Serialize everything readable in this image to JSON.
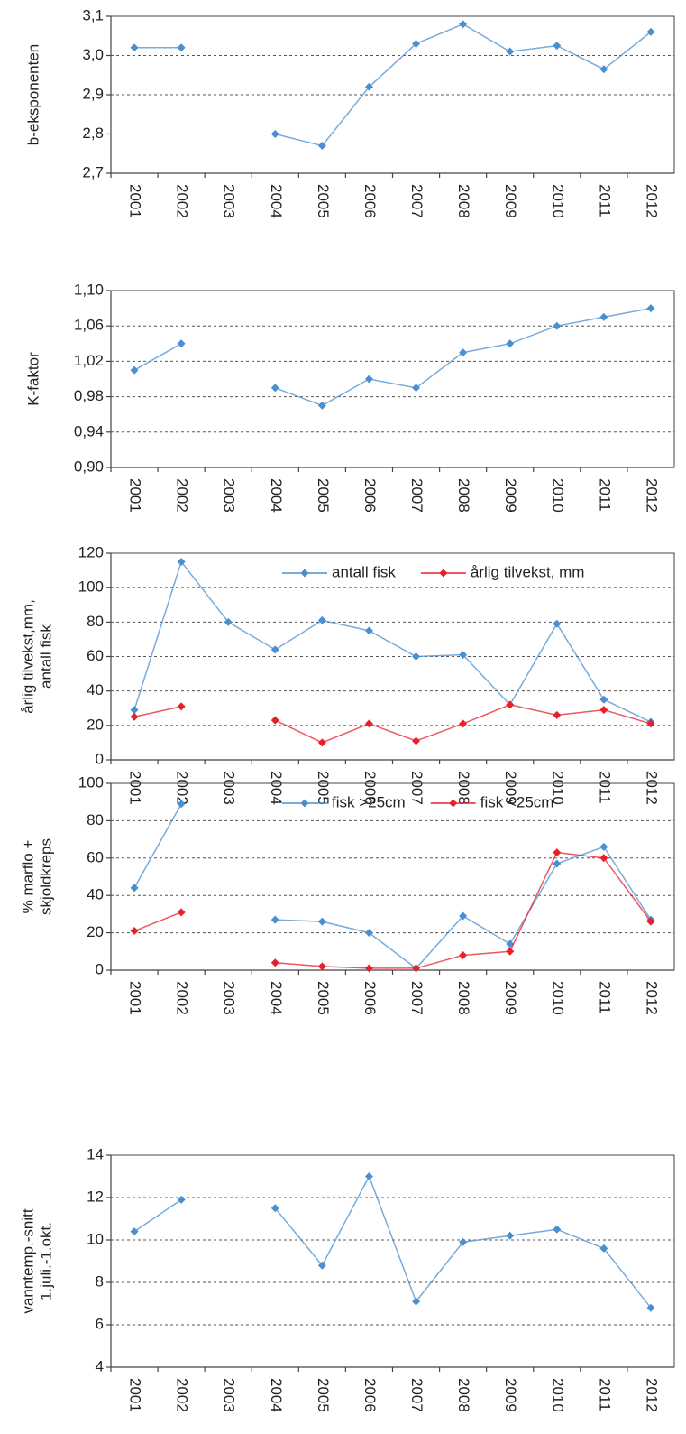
{
  "chart_data": [
    {
      "type": "line",
      "ylabel": [
        "b-eksponenten"
      ],
      "categories": [
        "2001",
        "2002",
        "2003",
        "2004",
        "2005",
        "2006",
        "2007",
        "2008",
        "2009",
        "2010",
        "2011",
        "2012"
      ],
      "series": [
        {
          "name": null,
          "color": "#4a8fd0",
          "values": [
            3.02,
            3.02,
            null,
            2.8,
            2.77,
            2.92,
            3.03,
            3.08,
            3.01,
            3.025,
            2.965,
            3.06
          ]
        }
      ],
      "ylim": [
        2.7,
        3.1
      ],
      "yticks": [
        {
          "value": 2.7,
          "label": "2,7"
        },
        {
          "value": 2.8,
          "label": "2,8"
        },
        {
          "value": 2.9,
          "label": "2,9"
        },
        {
          "value": 3.0,
          "label": "3,0"
        },
        {
          "value": 3.1,
          "label": "3,1"
        }
      ],
      "grid": true
    },
    {
      "type": "line",
      "ylabel": [
        "K-faktor"
      ],
      "categories": [
        "2001",
        "2002",
        "2003",
        "2004",
        "2005",
        "2006",
        "2007",
        "2008",
        "2009",
        "2010",
        "2011",
        "2012"
      ],
      "series": [
        {
          "name": null,
          "color": "#4a8fd0",
          "values": [
            1.01,
            1.04,
            null,
            0.99,
            0.97,
            1.0,
            0.99,
            1.03,
            1.04,
            1.06,
            1.07,
            1.08
          ]
        }
      ],
      "ylim": [
        0.9,
        1.1
      ],
      "yticks": [
        {
          "value": 0.9,
          "label": "0,90"
        },
        {
          "value": 0.94,
          "label": "0,94"
        },
        {
          "value": 0.98,
          "label": "0,98"
        },
        {
          "value": 1.02,
          "label": "1,02"
        },
        {
          "value": 1.06,
          "label": "1,06"
        },
        {
          "value": 1.1,
          "label": "1,10"
        }
      ],
      "grid": true
    },
    {
      "type": "line",
      "ylabel": [
        "årlig tilvekst,mm,",
        "antall fisk"
      ],
      "categories": [
        "2001",
        "2002",
        "2003",
        "2004",
        "2005",
        "2006",
        "2007",
        "2008",
        "2009",
        "2010",
        "2011",
        "2012"
      ],
      "series": [
        {
          "name": "antall fisk",
          "color": "#4a8fd0",
          "values": [
            29,
            115,
            80,
            64,
            81,
            75,
            60,
            61,
            32,
            79,
            35,
            22
          ]
        },
        {
          "name": "årlig tilvekst, mm",
          "color": "#e8202a",
          "values": [
            25,
            31,
            null,
            23,
            10,
            21,
            11,
            21,
            32,
            26,
            29,
            21
          ]
        }
      ],
      "ylim": [
        0,
        120
      ],
      "yticks": [
        0,
        20,
        40,
        60,
        80,
        100,
        120
      ],
      "grid": true,
      "legend": "top"
    },
    {
      "type": "line",
      "ylabel": [
        "% marflo +",
        "skjoldkreps"
      ],
      "categories": [
        "2001",
        "2002",
        "2003",
        "2004",
        "2005",
        "2006",
        "2007",
        "2008",
        "2009",
        "2010",
        "2011",
        "2012"
      ],
      "series": [
        {
          "name": "fisk >25cm",
          "color": "#4a8fd0",
          "values": [
            44,
            89,
            null,
            27,
            26,
            20,
            1,
            29,
            14,
            57,
            66,
            27
          ]
        },
        {
          "name": "fisk <25cm",
          "color": "#e8202a",
          "values": [
            21,
            31,
            null,
            4,
            2,
            1,
            1,
            8,
            10,
            63,
            60,
            26
          ]
        }
      ],
      "ylim": [
        0,
        100
      ],
      "yticks": [
        0,
        20,
        40,
        60,
        80,
        100
      ],
      "grid": true,
      "legend": "top"
    },
    {
      "type": "line",
      "ylabel": [
        "vanntemp.-snitt",
        "1.juli.-1.okt."
      ],
      "categories": [
        "2001",
        "2002",
        "2003",
        "2004",
        "2005",
        "2006",
        "2007",
        "2008",
        "2009",
        "2010",
        "2011",
        "2012"
      ],
      "series": [
        {
          "name": null,
          "color": "#4a8fd0",
          "values": [
            10.4,
            11.9,
            null,
            11.5,
            8.8,
            13.0,
            7.1,
            9.9,
            10.2,
            10.5,
            9.6,
            6.8
          ]
        }
      ],
      "ylim": [
        4,
        14
      ],
      "yticks": [
        4,
        6,
        8,
        10,
        12,
        14
      ],
      "grid": true
    }
  ]
}
